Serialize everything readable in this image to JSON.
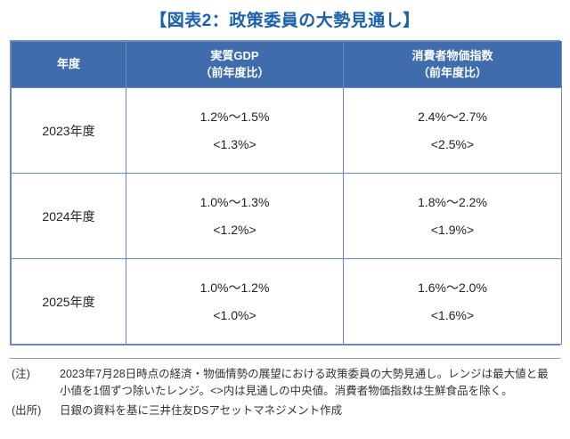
{
  "colors": {
    "title_color": "#1b61ae",
    "header_bg": "#3e6cac",
    "border": "#6c89c4",
    "note_rule": "#9b9b9b"
  },
  "title": "【図表2：政策委員の大勢見通し】",
  "chart_data": {
    "type": "table",
    "title": "図表2：政策委員の大勢見通し",
    "columns": [
      {
        "line1": "年度",
        "line2": ""
      },
      {
        "line1": "実質GDP",
        "line2": "（前年度比）"
      },
      {
        "line1": "消費者物価指数",
        "line2": "（前年度比）"
      }
    ],
    "rows": [
      {
        "year": "2023年度",
        "gdp_range": "1.2%～1.5%",
        "gdp_median": "<1.3%>",
        "cpi_range": "2.4%～2.7%",
        "cpi_median": "<2.5%>"
      },
      {
        "year": "2024年度",
        "gdp_range": "1.0%～1.3%",
        "gdp_median": "<1.2%>",
        "cpi_range": "1.8%～2.2%",
        "cpi_median": "<1.9%>"
      },
      {
        "year": "2025年度",
        "gdp_range": "1.0%～1.2%",
        "gdp_median": "<1.0%>",
        "cpi_range": "1.6%～2.0%",
        "cpi_median": "<1.6%>"
      }
    ]
  },
  "notes": {
    "note_label": "(注)",
    "note_text": "2023年7月28日時点の経済・物価情勢の展望における政策委員の大勢見通し。レンジは最大値と最小値を1個ずつ除いたレンジ。<>内は見通しの中央値。消費者物価指数は生鮮食品を除く。",
    "source_label": "(出所)",
    "source_text": "日銀の資料を基に三井住友DSアセットマネジメント作成"
  }
}
